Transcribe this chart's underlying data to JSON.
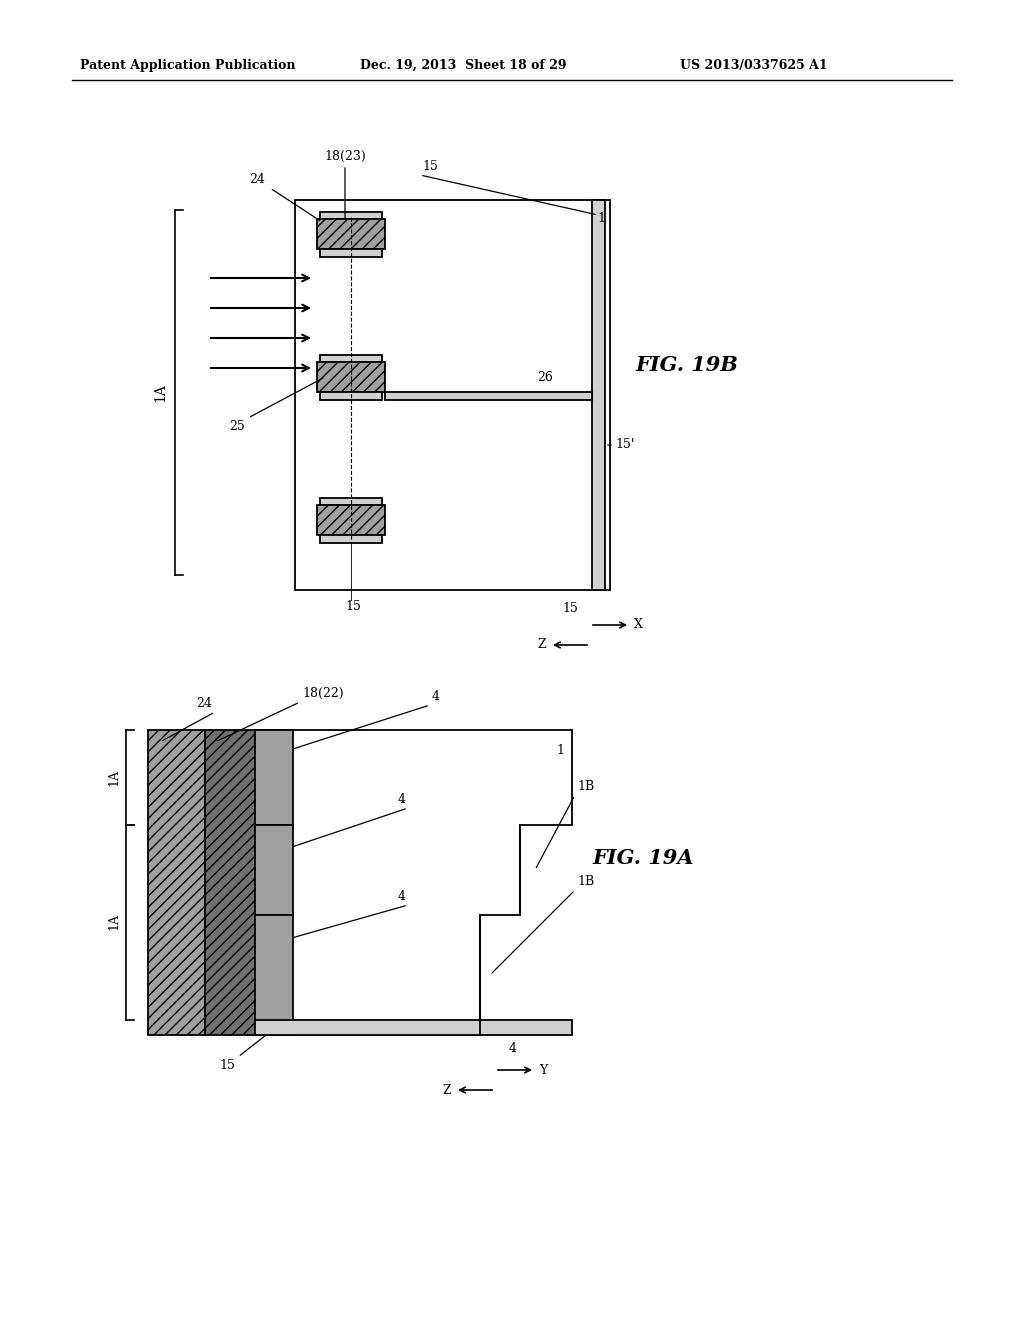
{
  "bg_color": "#ffffff",
  "header_text": "Patent Application Publication",
  "header_date": "Dec. 19, 2013  Sheet 18 of 29",
  "header_patent": "US 2013/0337625 A1",
  "fig19b_label": "FIG. 19B",
  "fig19a_label": "FIG. 19A",
  "lc": "#000000",
  "light_gray": "#d0d0d0",
  "med_gray": "#a0a0a0",
  "dark_gray": "#707070"
}
